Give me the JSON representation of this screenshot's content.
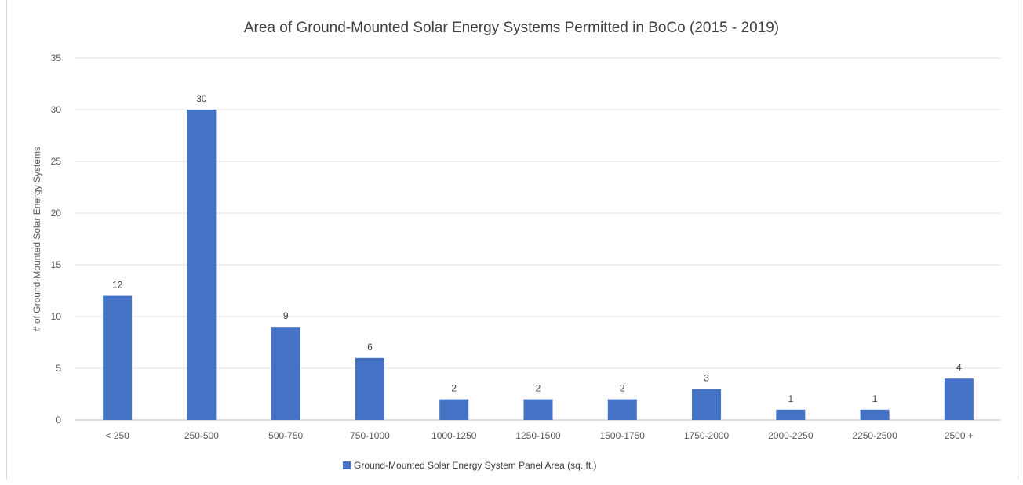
{
  "chart_data": {
    "type": "bar",
    "title": "Area of Ground-Mounted Solar Energy Systems Permitted in BoCo (2015 - 2019)",
    "xlabel": "",
    "ylabel": "# of Ground-Mounted Solar Energy Systems",
    "categories": [
      "< 250",
      "250-500",
      "500-750",
      "750-1000",
      "1000-1250",
      "1250-1500",
      "1500-1750",
      "1750-2000",
      "2000-2250",
      "2250-2500",
      "2500 +"
    ],
    "series": [
      {
        "name": "Ground-Mounted Solar Energy System Panel Area (sq. ft.)",
        "values": [
          12,
          30,
          9,
          6,
          2,
          2,
          2,
          3,
          1,
          1,
          4
        ],
        "color": "#4472c4"
      }
    ],
    "ylim": [
      0,
      35
    ],
    "yticks": [
      0,
      5,
      10,
      15,
      20,
      25,
      30,
      35
    ],
    "grid": true,
    "legend": "bottom",
    "data_labels": true
  }
}
